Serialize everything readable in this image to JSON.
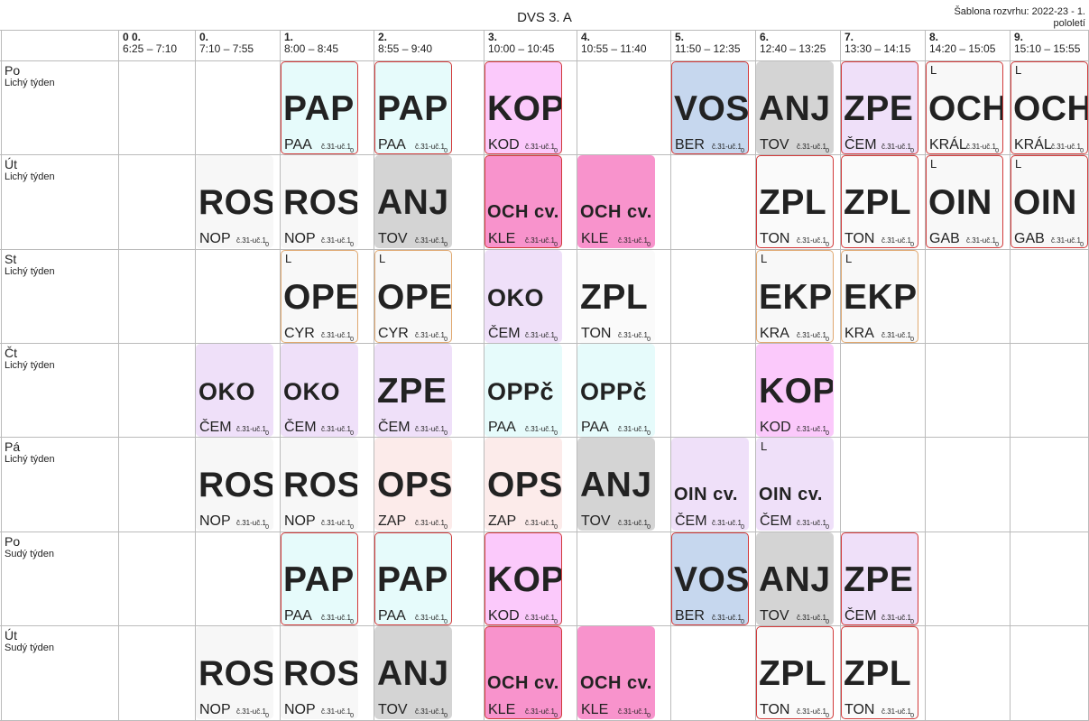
{
  "title": "DVS 3. A",
  "template_info": "Šablona rozvrhu: 2022-23 - 1. pololetí",
  "columns": [
    {
      "num": "0 0.",
      "time": "6:25 – 7:10"
    },
    {
      "num": "0.",
      "time": "7:10 – 7:55"
    },
    {
      "num": "1.",
      "time": "8:00 – 8:45"
    },
    {
      "num": "2.",
      "time": "8:55 – 9:40"
    },
    {
      "num": "3.",
      "time": "10:00 – 10:45"
    },
    {
      "num": "4.",
      "time": "10:55 – 11:40"
    },
    {
      "num": "5.",
      "time": "11:50 – 12:35"
    },
    {
      "num": "6.",
      "time": "12:40 – 13:25"
    },
    {
      "num": "7.",
      "time": "13:30 – 14:15"
    },
    {
      "num": "8.",
      "time": "14:20 – 15:05"
    },
    {
      "num": "9.",
      "time": "15:10 – 15:55"
    }
  ],
  "days": [
    {
      "day": "Po",
      "week": "Lichý týden",
      "lessons": [
        {
          "col": 2,
          "subj": "PAP",
          "teacher": "PAA",
          "room": "č.31-uč.1",
          "zero": "0",
          "bg": "#e6fbfb",
          "border": "red"
        },
        {
          "col": 3,
          "subj": "PAP",
          "teacher": "PAA",
          "room": "č.31-uč.1",
          "zero": "0",
          "bg": "#e6fbfb",
          "border": "red"
        },
        {
          "col": 4,
          "subj": "KOP",
          "teacher": "KOD",
          "room": "č.31-uč.1",
          "zero": "0",
          "bg": "#fbc9fb",
          "border": "red"
        },
        {
          "col": 6,
          "subj": "VOS",
          "teacher": "BER",
          "room": "č.31-uč.1",
          "zero": "0",
          "bg": "#c6d7ee",
          "border": "red"
        },
        {
          "col": 7,
          "subj": "ANJ",
          "teacher": "TOV",
          "room": "č.31-uč.1",
          "zero": "0",
          "bg": "#d4d4d4",
          "border": "none"
        },
        {
          "col": 8,
          "subj": "ZPE",
          "teacher": "ČEM",
          "room": "č.31-uč.1",
          "zero": "0",
          "bg": "#efe0f9",
          "border": "red"
        },
        {
          "col": 9,
          "subj": "OCH",
          "teacher": "KRÁL",
          "room": "č.31-uč.1",
          "zero": "0",
          "bg": "#f8f8f8",
          "border": "red",
          "label": "L"
        },
        {
          "col": 10,
          "subj": "OCH",
          "teacher": "KRÁL",
          "room": "č.31-uč.1",
          "zero": "0",
          "bg": "#f8f8f8",
          "border": "red",
          "label": "L"
        }
      ]
    },
    {
      "day": "Út",
      "week": "Lichý týden",
      "lessons": [
        {
          "col": 1,
          "subj": "ROS",
          "teacher": "NOP",
          "room": "č.31-uč.1",
          "zero": "0",
          "bg": "#f7f7f7",
          "border": "none"
        },
        {
          "col": 2,
          "subj": "ROS",
          "teacher": "NOP",
          "room": "č.31-uč.1",
          "zero": "0",
          "bg": "#f7f7f7",
          "border": "none"
        },
        {
          "col": 3,
          "subj": "ANJ",
          "teacher": "TOV",
          "room": "č.31-uč.1",
          "zero": "0",
          "bg": "#d4d4d4",
          "border": "none"
        },
        {
          "col": 4,
          "subj": "OCH cv.",
          "teacher": "KLE",
          "room": "č.31-uč.1",
          "zero": "0",
          "bg": "#f893cc",
          "border": "red",
          "size": "sm"
        },
        {
          "col": 5,
          "subj": "OCH cv.",
          "teacher": "KLE",
          "room": "č.31-uč.1",
          "zero": "0",
          "bg": "#f893cc",
          "border": "none",
          "size": "sm"
        },
        {
          "col": 7,
          "subj": "ZPL",
          "teacher": "TON",
          "room": "č.31-uč.1",
          "zero": "0",
          "bg": "#fafafa",
          "border": "red"
        },
        {
          "col": 8,
          "subj": "ZPL",
          "teacher": "TON",
          "room": "č.31-uč.1",
          "zero": "0",
          "bg": "#fafafa",
          "border": "red"
        },
        {
          "col": 9,
          "subj": "OIN",
          "teacher": "GAB",
          "room": "č.31-uč.1",
          "zero": "0",
          "bg": "#f8f8f8",
          "border": "red",
          "label": "L"
        },
        {
          "col": 10,
          "subj": "OIN",
          "teacher": "GAB",
          "room": "č.31-uč.1",
          "zero": "0",
          "bg": "#f8f8f8",
          "border": "red",
          "label": "L"
        }
      ]
    },
    {
      "day": "St",
      "week": "Lichý týden",
      "lessons": [
        {
          "col": 2,
          "subj": "OPE",
          "teacher": "CYR",
          "room": "č.31-uč.1",
          "zero": "0",
          "bg": "#f8f8f8",
          "border": "org",
          "label": "L"
        },
        {
          "col": 3,
          "subj": "OPE",
          "teacher": "CYR",
          "room": "č.31-uč.1",
          "zero": "0",
          "bg": "#f8f8f8",
          "border": "org",
          "label": "L"
        },
        {
          "col": 4,
          "subj": "OKO",
          "teacher": "ČEM",
          "room": "č.31-uč.1",
          "zero": "0",
          "bg": "#efe0f9",
          "border": "none",
          "size": "mid"
        },
        {
          "col": 5,
          "subj": "ZPL",
          "teacher": "TON",
          "room": "č.31-uč.1",
          "zero": "0",
          "bg": "#fafafa",
          "border": "none"
        },
        {
          "col": 7,
          "subj": "EKP",
          "teacher": "KRA",
          "room": "č.31-uč.1",
          "zero": "0",
          "bg": "#f8f8f8",
          "border": "org",
          "label": "L"
        },
        {
          "col": 8,
          "subj": "EKP",
          "teacher": "KRA",
          "room": "č.31-uč.1",
          "zero": "0",
          "bg": "#f8f8f8",
          "border": "org",
          "label": "L"
        }
      ]
    },
    {
      "day": "Čt",
      "week": "Lichý týden",
      "lessons": [
        {
          "col": 1,
          "subj": "OKO",
          "teacher": "ČEM",
          "room": "č.31-uč.1",
          "zero": "0",
          "bg": "#efe0f9",
          "border": "none",
          "size": "mid"
        },
        {
          "col": 2,
          "subj": "OKO",
          "teacher": "ČEM",
          "room": "č.31-uč.1",
          "zero": "0",
          "bg": "#efe0f9",
          "border": "none",
          "size": "mid"
        },
        {
          "col": 3,
          "subj": "ZPE",
          "teacher": "ČEM",
          "room": "č.31-uč.1",
          "zero": "0",
          "bg": "#efe0f9",
          "border": "none"
        },
        {
          "col": 4,
          "subj": "OPPč",
          "teacher": "PAA",
          "room": "č.31-uč.1",
          "zero": "0",
          "bg": "#e6fbfb",
          "border": "none",
          "size": "mid"
        },
        {
          "col": 5,
          "subj": "OPPč",
          "teacher": "PAA",
          "room": "č.31-uč.1",
          "zero": "0",
          "bg": "#e6fbfb",
          "border": "none",
          "size": "mid"
        },
        {
          "col": 7,
          "subj": "KOP",
          "teacher": "KOD",
          "room": "č.31-uč.1",
          "zero": "0",
          "bg": "#fbc9fb",
          "border": "none"
        }
      ]
    },
    {
      "day": "Pá",
      "week": "Lichý týden",
      "lessons": [
        {
          "col": 1,
          "subj": "ROS",
          "teacher": "NOP",
          "room": "č.31-uč.1",
          "zero": "0",
          "bg": "#f7f7f7",
          "border": "none"
        },
        {
          "col": 2,
          "subj": "ROS",
          "teacher": "NOP",
          "room": "č.31-uč.1",
          "zero": "0",
          "bg": "#f7f7f7",
          "border": "none"
        },
        {
          "col": 3,
          "subj": "OPS",
          "teacher": "ZAP",
          "room": "č.31-uč.1",
          "zero": "0",
          "bg": "#fcebea",
          "border": "none"
        },
        {
          "col": 4,
          "subj": "OPS",
          "teacher": "ZAP",
          "room": "č.31-uč.1",
          "zero": "0",
          "bg": "#fcebea",
          "border": "none"
        },
        {
          "col": 5,
          "subj": "ANJ",
          "teacher": "TOV",
          "room": "č.31-uč.1",
          "zero": "0",
          "bg": "#d4d4d4",
          "border": "none"
        },
        {
          "col": 6,
          "subj": "OIN cv.",
          "teacher": "ČEM",
          "room": "č.31-uč.1",
          "zero": "0",
          "bg": "#efe0f9",
          "border": "none",
          "size": "sm"
        },
        {
          "col": 7,
          "subj": "OIN cv.",
          "teacher": "ČEM",
          "room": "č.31-uč.1",
          "zero": "0",
          "bg": "#efe0f9",
          "border": "none",
          "size": "sm",
          "label": "L"
        }
      ]
    },
    {
      "day": "Po",
      "week": "Sudý týden",
      "lessons": [
        {
          "col": 2,
          "subj": "PAP",
          "teacher": "PAA",
          "room": "č.31-uč.1",
          "zero": "0",
          "bg": "#e6fbfb",
          "border": "red"
        },
        {
          "col": 3,
          "subj": "PAP",
          "teacher": "PAA",
          "room": "č.31-uč.1",
          "zero": "0",
          "bg": "#e6fbfb",
          "border": "red"
        },
        {
          "col": 4,
          "subj": "KOP",
          "teacher": "KOD",
          "room": "č.31-uč.1",
          "zero": "0",
          "bg": "#fbc9fb",
          "border": "red"
        },
        {
          "col": 6,
          "subj": "VOS",
          "teacher": "BER",
          "room": "č.31-uč.1",
          "zero": "0",
          "bg": "#c6d7ee",
          "border": "red"
        },
        {
          "col": 7,
          "subj": "ANJ",
          "teacher": "TOV",
          "room": "č.31-uč.1",
          "zero": "0",
          "bg": "#d4d4d4",
          "border": "none"
        },
        {
          "col": 8,
          "subj": "ZPE",
          "teacher": "ČEM",
          "room": "č.31-uč.1",
          "zero": "0",
          "bg": "#efe0f9",
          "border": "red"
        }
      ]
    },
    {
      "day": "Út",
      "week": "Sudý týden",
      "lessons": [
        {
          "col": 1,
          "subj": "ROS",
          "teacher": "NOP",
          "room": "č.31-uč.1",
          "zero": "0",
          "bg": "#f7f7f7",
          "border": "none"
        },
        {
          "col": 2,
          "subj": "ROS",
          "teacher": "NOP",
          "room": "č.31-uč.1",
          "zero": "0",
          "bg": "#f7f7f7",
          "border": "none"
        },
        {
          "col": 3,
          "subj": "ANJ",
          "teacher": "TOV",
          "room": "č.31-uč.1",
          "zero": "0",
          "bg": "#d4d4d4",
          "border": "none"
        },
        {
          "col": 4,
          "subj": "OCH cv.",
          "teacher": "KLE",
          "room": "č.31-uč.1",
          "zero": "0",
          "bg": "#f893cc",
          "border": "red",
          "size": "sm"
        },
        {
          "col": 5,
          "subj": "OCH cv.",
          "teacher": "KLE",
          "room": "č.31-uč.1",
          "zero": "0",
          "bg": "#f893cc",
          "border": "none",
          "size": "sm"
        },
        {
          "col": 7,
          "subj": "ZPL",
          "teacher": "TON",
          "room": "č.31-uč.1",
          "zero": "0",
          "bg": "#fafafa",
          "border": "red"
        },
        {
          "col": 8,
          "subj": "ZPL",
          "teacher": "TON",
          "room": "č.31-uč.1",
          "zero": "0",
          "bg": "#fafafa",
          "border": "red"
        }
      ]
    }
  ]
}
